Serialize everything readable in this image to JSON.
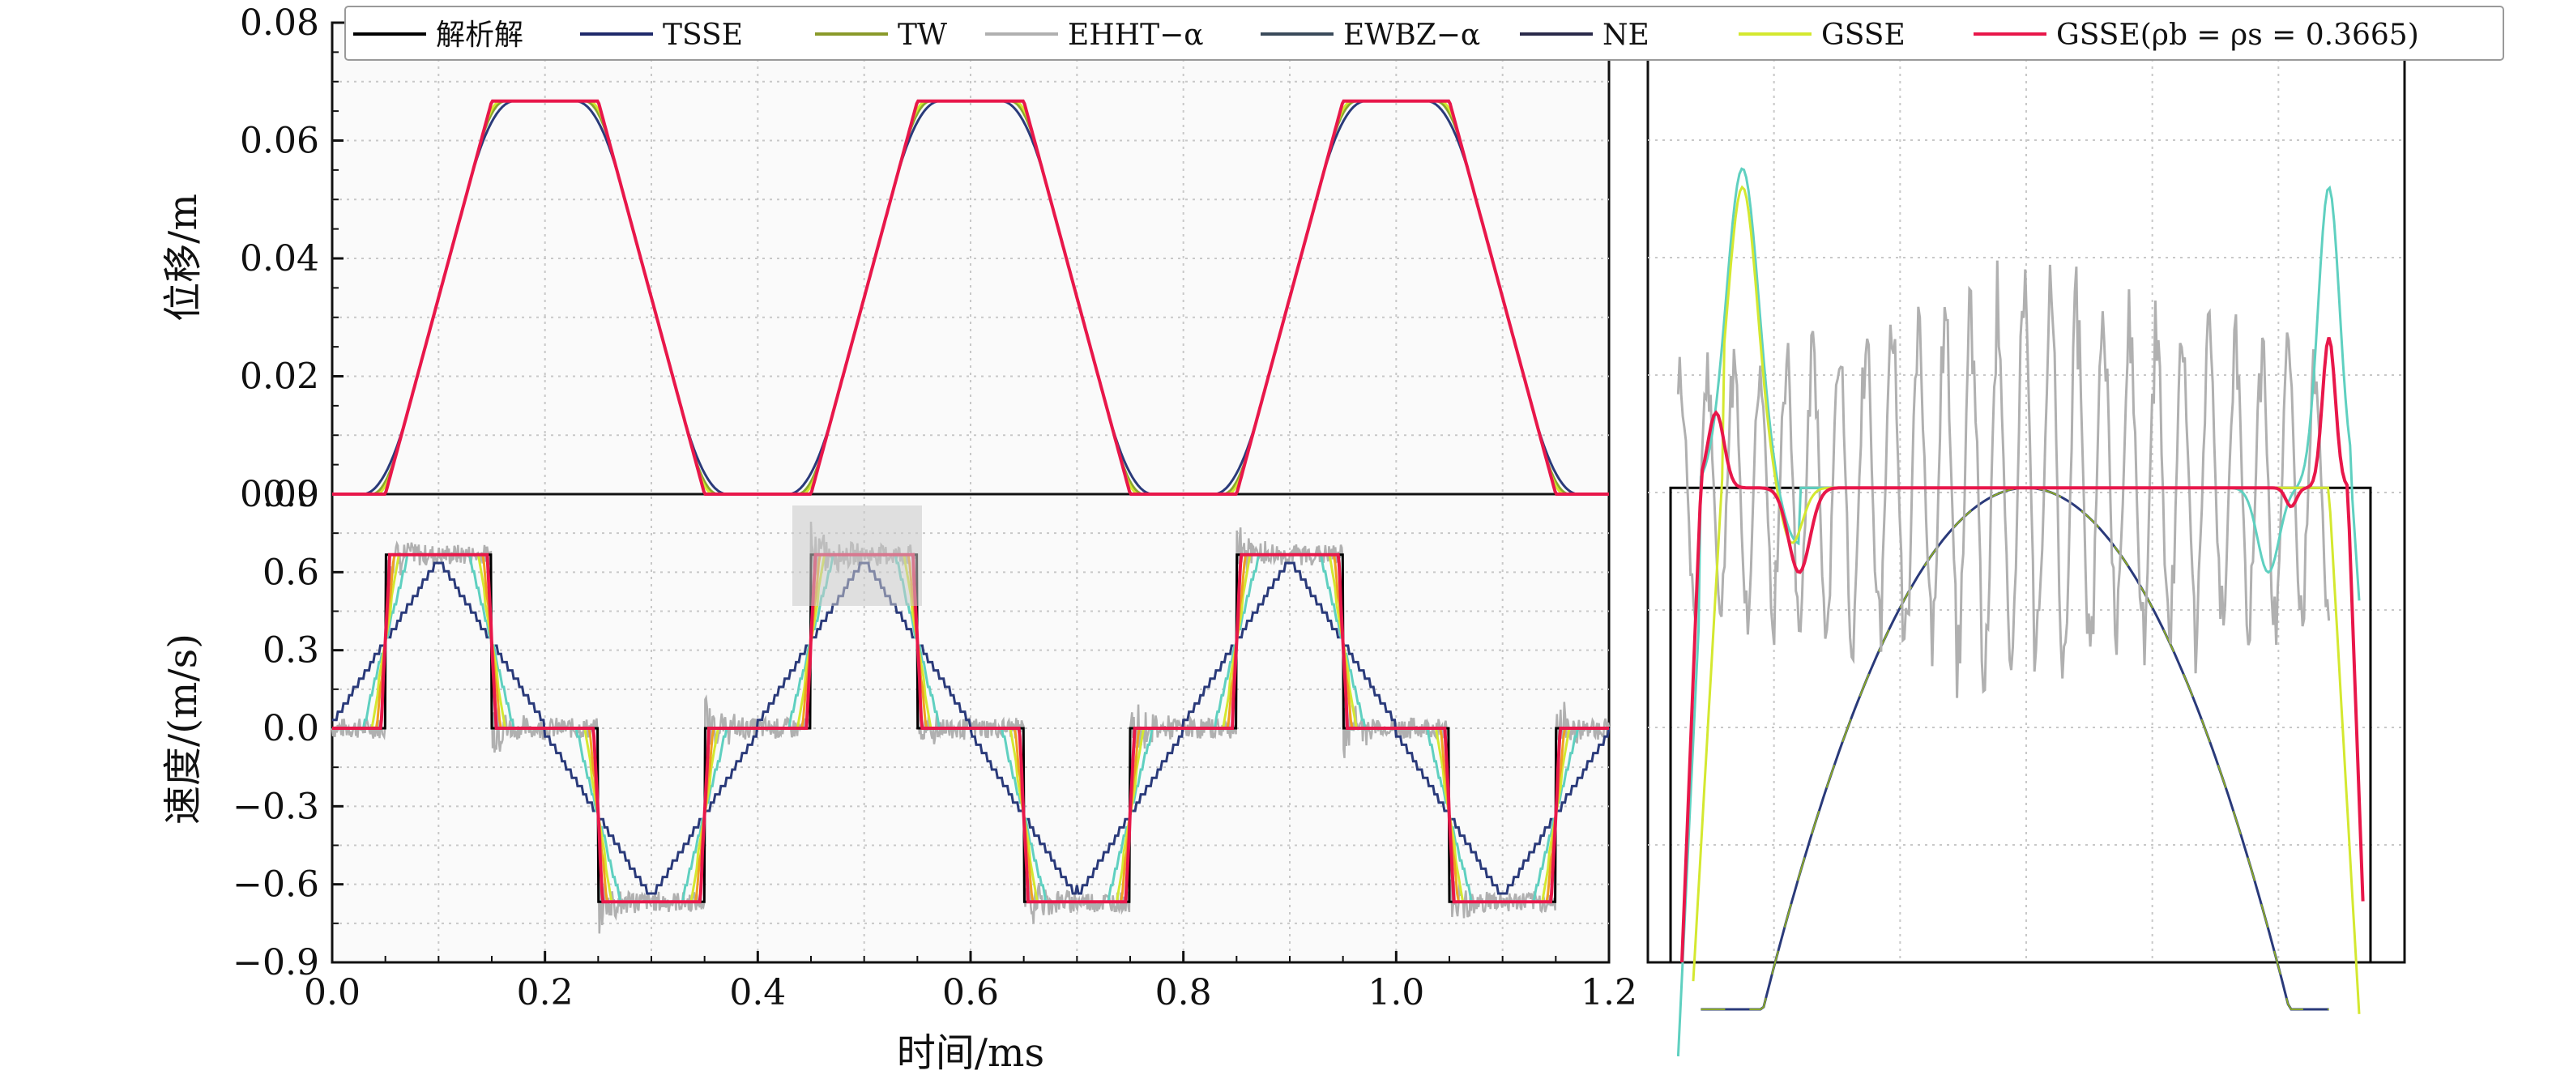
{
  "chart_data": [
    {
      "type": "line",
      "name": "displacement",
      "ylabel": "位移/m",
      "xlabel": "",
      "xlim": [
        0.0,
        1.2
      ],
      "ylim": [
        0.0,
        0.08
      ],
      "yticks": [
        "0.00",
        "0.02",
        "0.04",
        "0.06",
        "0.08"
      ],
      "grid": true,
      "series": [
        {
          "name": "解析解",
          "color": "#000000",
          "values_desc": "trapezoid",
          "x": [
            0,
            0.05,
            0.15,
            0.25,
            0.35,
            0.45,
            0.55,
            0.65,
            0.75,
            0.85,
            0.95,
            1.05,
            1.15,
            1.2
          ],
          "y": [
            0,
            0,
            0.0667,
            0.0667,
            0,
            0,
            0.0667,
            0.0667,
            0,
            0,
            0.0667,
            0.0667,
            0,
            0
          ]
        },
        {
          "name": "GSSE(ρb=ρs=0.3665)",
          "color": "#e8174a",
          "x": [
            0,
            0.05,
            0.15,
            0.25,
            0.35,
            0.45,
            0.55,
            0.65,
            0.75,
            0.85,
            0.95,
            1.05,
            1.15,
            1.2
          ],
          "y": [
            0,
            0,
            0.0667,
            0.0667,
            0,
            0,
            0.0667,
            0.0667,
            0,
            0,
            0.0667,
            0.0667,
            0,
            0
          ]
        }
      ]
    },
    {
      "type": "line",
      "name": "velocity",
      "ylabel": "速度/(m/s)",
      "xlabel": "时间/ms",
      "xlim": [
        0.0,
        1.2
      ],
      "ylim": [
        -0.9,
        0.9
      ],
      "xticks": [
        "0.0",
        "0.2",
        "0.4",
        "0.6",
        "0.8",
        "1.0",
        "1.2"
      ],
      "yticks": [
        "−0.9",
        "−0.6",
        "−0.3",
        "0.0",
        "0.3",
        "0.6",
        "0.9"
      ],
      "grid": true,
      "series": [
        {
          "name": "解析解",
          "color": "#000000",
          "x": [
            0,
            0.05,
            0.05,
            0.15,
            0.15,
            0.25,
            0.25,
            0.35,
            0.35,
            0.45,
            0.45,
            0.55,
            0.55,
            0.65,
            0.65,
            0.75,
            0.75,
            0.85,
            0.85,
            0.95,
            0.95,
            1.05,
            1.05,
            1.15,
            1.15,
            1.2
          ],
          "y": [
            0,
            0,
            0.667,
            0.667,
            0,
            0,
            -0.667,
            -0.667,
            0,
            0,
            0.667,
            0.667,
            0,
            0,
            -0.667,
            -0.667,
            0,
            0,
            0.667,
            0.667,
            0,
            0,
            -0.667,
            -0.667,
            0,
            0
          ]
        }
      ]
    },
    {
      "type": "line",
      "name": "zoom-inset",
      "title": "",
      "xlabel": "",
      "ylabel": "",
      "grid": true,
      "series_note": "magnified view of the velocity plateau near t=0.45–0.55 ms"
    }
  ],
  "legend": {
    "placement": "top",
    "entries": [
      {
        "label": "解析解",
        "color": "#000000"
      },
      {
        "label": "TSSE",
        "color": "#1f2a6b"
      },
      {
        "label": "TW",
        "color": "#8a9a2a"
      },
      {
        "label": "EHHT−α",
        "color": "#b0b0b0"
      },
      {
        "label": "EWBZ−α",
        "color": "#3a4a5a"
      },
      {
        "label": "NE",
        "color": "#2a2a4a"
      },
      {
        "label": "GSSE",
        "color": "#d4e830"
      },
      {
        "label": "GSSE(ρb = ρs = 0.3665)",
        "color": "#e8174a"
      }
    ]
  }
}
